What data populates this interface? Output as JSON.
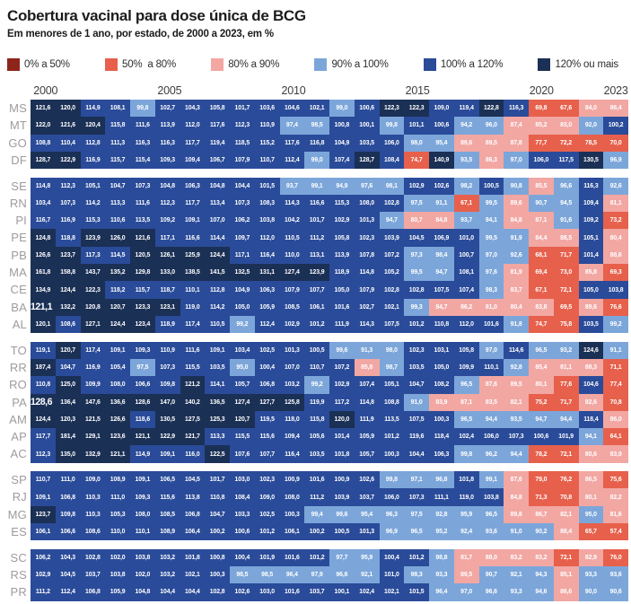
{
  "title": "Cobertura vacinal para dose única de BCG",
  "subtitle": "Em menores de 1 ano, por estado, de 2000 a 2023, em %",
  "legend": [
    {
      "label": "0% a 50%",
      "color": "#8e251b"
    },
    {
      "label": "50%  a 80%",
      "color": "#e7604b"
    },
    {
      "label": "80% a 90%",
      "color": "#f2a7a3"
    },
    {
      "label": "90% a 100%",
      "color": "#7ca6da"
    },
    {
      "label": "100% a 120%",
      "color": "#2a4b99"
    },
    {
      "label": "120% ou mais",
      "color": "#1b3055"
    }
  ],
  "chart_data": {
    "type": "heatmap",
    "unit": "%",
    "years": [
      2000,
      2001,
      2002,
      2003,
      2004,
      2005,
      2006,
      2007,
      2008,
      2009,
      2010,
      2011,
      2012,
      2013,
      2014,
      2015,
      2016,
      2017,
      2018,
      2019,
      2020,
      2021,
      2022,
      2023
    ],
    "x_axis_labels": [
      {
        "label": "2000",
        "col": 0
      },
      {
        "label": "2005",
        "col": 5
      },
      {
        "label": "2010",
        "col": 10
      },
      {
        "label": "2015",
        "col": 15
      },
      {
        "label": "2020",
        "col": 20
      },
      {
        "label": "2023",
        "col": 23
      }
    ],
    "thresholds": [
      50,
      80,
      90,
      100,
      120
    ],
    "highlights": [
      {
        "state": "BA",
        "year": 2000,
        "value": 121.1
      },
      {
        "state": "PA",
        "year": 2000,
        "value": 128.6
      }
    ],
    "groups": [
      {
        "rows": [
          {
            "state": "MS",
            "values": [
              121.6,
              120.0,
              114.9,
              108.1,
              99.8,
              102.7,
              104.3,
              105.8,
              101.7,
              103.6,
              104.6,
              102.1,
              99.0,
              100.6,
              122.3,
              122.3,
              109.0,
              119.4,
              122.8,
              116.3,
              69.8,
              67.6,
              84.0,
              86.4
            ]
          },
          {
            "state": "MT",
            "values": [
              122.0,
              121.6,
              120.4,
              115.8,
              111.6,
              113.9,
              112.0,
              117.6,
              112.3,
              110.9,
              97.4,
              98.5,
              100.8,
              100.1,
              99.8,
              101.1,
              100.6,
              94.2,
              96.0,
              87.4,
              85.2,
              83.0,
              92.0,
              100.2
            ]
          },
          {
            "state": "GO",
            "values": [
              108.8,
              110.4,
              112.8,
              111.3,
              116.3,
              116.3,
              117.7,
              119.4,
              118.5,
              115.2,
              117.6,
              116.8,
              104.9,
              103.5,
              106.0,
              98.0,
              95.4,
              89.6,
              89.5,
              87.8,
              77.7,
              72.2,
              78.5,
              70.0
            ]
          },
          {
            "state": "DF",
            "values": [
              128.7,
              122.9,
              116.9,
              115.7,
              115.4,
              109.3,
              109.4,
              106.7,
              107.9,
              110.7,
              112.4,
              99.0,
              107.4,
              128.7,
              108.4,
              74.7,
              140.9,
              93.5,
              86.3,
              97.0,
              106.0,
              117.5,
              130.5,
              96.9
            ]
          }
        ]
      },
      {
        "rows": [
          {
            "state": "SE",
            "values": [
              114.8,
              112.3,
              105.1,
              104.7,
              107.3,
              104.8,
              106.3,
              104.8,
              104.4,
              101.5,
              93.7,
              99.1,
              94.9,
              97.6,
              98.1,
              102.9,
              102.6,
              98.2,
              100.5,
              90.8,
              85.5,
              96.6,
              116.3,
              92.6
            ]
          },
          {
            "state": "RN",
            "values": [
              103.4,
              107.3,
              114.2,
              113.3,
              111.6,
              112.3,
              117.7,
              113.4,
              107.3,
              108.3,
              114.3,
              116.6,
              115.3,
              108.0,
              102.8,
              97.5,
              91.1,
              67.1,
              99.5,
              89.6,
              90.7,
              94.5,
              109.4,
              81.1
            ]
          },
          {
            "state": "PI",
            "values": [
              116.7,
              116.9,
              115.3,
              110.6,
              113.5,
              109.2,
              109.1,
              107.0,
              106.2,
              103.8,
              104.2,
              101.7,
              102.9,
              101.3,
              94.7,
              80.7,
              84.8,
              93.7,
              94.1,
              84.8,
              87.1,
              91.6,
              109.2,
              73.2
            ]
          },
          {
            "state": "PE",
            "values": [
              124.8,
              118.8,
              123.9,
              126.0,
              121.6,
              117.1,
              116.6,
              114.4,
              109.7,
              112.0,
              110.5,
              111.2,
              105.8,
              102.3,
              103.9,
              104.5,
              106.9,
              101.0,
              99.5,
              91.9,
              84.4,
              88.5,
              105.1,
              80.4
            ]
          },
          {
            "state": "PB",
            "values": [
              126.6,
              123.7,
              117.3,
              114.5,
              120.5,
              126.1,
              125.9,
              124.4,
              117.1,
              116.4,
              110.0,
              113.1,
              113.9,
              107.8,
              107.2,
              97.3,
              98.4,
              100.7,
              97.0,
              92.6,
              68.1,
              71.7,
              101.4,
              88.6
            ]
          },
          {
            "state": "MA",
            "values": [
              161.8,
              158.8,
              143.7,
              135.2,
              129.8,
              133.0,
              138.5,
              141.5,
              132.5,
              131.1,
              127.4,
              123.9,
              118.9,
              114.8,
              105.2,
              99.5,
              94.7,
              108.1,
              97.6,
              81.9,
              69.4,
              73.0,
              85.8,
              69.3
            ]
          },
          {
            "state": "CE",
            "values": [
              134.9,
              124.4,
              122.3,
              118.2,
              115.7,
              118.7,
              110.1,
              112.8,
              104.9,
              106.3,
              107.9,
              107.7,
              105.0,
              107.9,
              102.8,
              102.8,
              107.5,
              107.4,
              98.3,
              83.7,
              67.1,
              72.1,
              105.0,
              103.8
            ]
          },
          {
            "state": "BA",
            "values": [
              121.1,
              132.2,
              120.8,
              120.7,
              123.3,
              123.1,
              119.0,
              114.2,
              105.0,
              105.9,
              108.5,
              106.1,
              101.6,
              102.7,
              102.1,
              99.3,
              84.7,
              86.2,
              81.0,
              80.4,
              83.8,
              69.5,
              89.6,
              76.6
            ]
          },
          {
            "state": "AL",
            "values": [
              120.1,
              108.6,
              127.1,
              124.4,
              123.4,
              118.9,
              117.4,
              110.5,
              99.2,
              112.4,
              102.9,
              101.2,
              111.9,
              114.3,
              107.5,
              101.2,
              110.8,
              112.0,
              101.6,
              91.8,
              74.7,
              75.8,
              103.5,
              99.2
            ]
          }
        ]
      },
      {
        "rows": [
          {
            "state": "TO",
            "values": [
              119.1,
              120.7,
              117.4,
              109.1,
              109.3,
              110.9,
              111.6,
              109.1,
              103.4,
              102.5,
              101.3,
              100.5,
              99.6,
              91.3,
              98.0,
              102.3,
              103.1,
              105.8,
              97.0,
              114.6,
              96.5,
              93.2,
              124.6,
              91.1
            ]
          },
          {
            "state": "RR",
            "values": [
              187.4,
              104.7,
              116.9,
              105.4,
              97.5,
              107.3,
              115.5,
              103.5,
              95.0,
              100.4,
              107.0,
              110.7,
              107.2,
              85.8,
              98.7,
              103.5,
              105.0,
              109.9,
              110.1,
              92.8,
              85.4,
              81.1,
              88.3,
              71.1
            ]
          },
          {
            "state": "RO",
            "values": [
              110.8,
              125.0,
              109.9,
              108.0,
              106.6,
              109.8,
              121.2,
              114.1,
              105.7,
              106.8,
              103.2,
              99.2,
              102.9,
              107.4,
              105.1,
              104.7,
              108.2,
              96.5,
              87.6,
              89.5,
              80.1,
              77.6,
              104.6,
              77.4
            ]
          },
          {
            "state": "PA",
            "values": [
              128.6,
              136.4,
              147.6,
              136.6,
              128.6,
              147.0,
              140.2,
              136.5,
              127.4,
              127.7,
              125.8,
              119.9,
              117.2,
              114.8,
              108.8,
              91.0,
              83.9,
              87.1,
              83.5,
              82.1,
              75.2,
              71.7,
              82.6,
              70.8
            ]
          },
          {
            "state": "AM",
            "values": [
              124.4,
              120.3,
              121.5,
              126.6,
              118.6,
              130.5,
              127.5,
              125.3,
              120.7,
              119.5,
              118.0,
              115.8,
              120.0,
              111.9,
              113.5,
              107.5,
              100.3,
              96.5,
              94.4,
              93.5,
              94.7,
              94.4,
              118.4,
              86.0
            ]
          },
          {
            "state": "AP",
            "values": [
              117.7,
              181.4,
              129.1,
              123.6,
              121.1,
              122.9,
              121.7,
              113.3,
              115.5,
              115.6,
              109.4,
              105.6,
              101.4,
              105.9,
              101.2,
              119.6,
              118.4,
              102.4,
              106.0,
              107.3,
              100.6,
              101.9,
              94.1,
              64.1
            ]
          },
          {
            "state": "AC",
            "values": [
              112.3,
              135.0,
              132.9,
              121.1,
              114.9,
              109.1,
              116.0,
              122.5,
              107.6,
              107.7,
              116.4,
              103.5,
              101.8,
              105.7,
              100.3,
              104.4,
              106.3,
              99.8,
              96.2,
              94.4,
              78.2,
              72.1,
              80.6,
              83.9
            ]
          }
        ]
      },
      {
        "rows": [
          {
            "state": "SP",
            "values": [
              110.7,
              111.0,
              109.0,
              108.9,
              109.1,
              106.5,
              104.5,
              101.7,
              103.0,
              102.3,
              100.9,
              101.6,
              100.9,
              102.6,
              99.8,
              97.1,
              96.8,
              101.8,
              99.1,
              87.6,
              79.0,
              76.2,
              86.5,
              75.6
            ]
          },
          {
            "state": "RJ",
            "values": [
              109.1,
              106.8,
              110.3,
              111.0,
              109.3,
              115.6,
              113.8,
              110.8,
              108.4,
              109.0,
              108.0,
              111.2,
              103.9,
              103.7,
              106.0,
              107.3,
              111.1,
              119.0,
              103.8,
              84.8,
              71.3,
              70.8,
              80.1,
              82.2
            ]
          },
          {
            "state": "MG",
            "values": [
              123.7,
              109.8,
              110.3,
              105.3,
              108.0,
              108.5,
              106.8,
              104.7,
              103.3,
              102.5,
              100.3,
              99.4,
              99.6,
              95.4,
              96.3,
              97.5,
              92.8,
              95.9,
              96.5,
              89.8,
              86.7,
              82.1,
              95.0,
              81.6
            ]
          },
          {
            "state": "ES",
            "values": [
              106.1,
              106.6,
              108.6,
              110.0,
              110.1,
              108.9,
              106.4,
              100.2,
              100.6,
              101.2,
              106.1,
              100.2,
              100.5,
              101.3,
              96.9,
              96.5,
              95.2,
              92.4,
              93.6,
              91.0,
              90.2,
              88.4,
              65.7,
              57.4
            ]
          }
        ]
      },
      {
        "rows": [
          {
            "state": "SC",
            "values": [
              106.2,
              104.3,
              102.8,
              102.0,
              103.8,
              103.2,
              101.8,
              100.8,
              100.4,
              101.9,
              101.6,
              101.2,
              97.7,
              95.9,
              100.4,
              101.2,
              98.8,
              81.7,
              88.0,
              83.2,
              83.2,
              72.1,
              82.9,
              76.0
            ]
          },
          {
            "state": "RS",
            "values": [
              102.9,
              104.5,
              103.7,
              103.8,
              102.0,
              103.2,
              102.1,
              100.3,
              98.5,
              98.5,
              96.4,
              97.9,
              96.6,
              92.1,
              101.0,
              98.3,
              93.3,
              89.5,
              90.7,
              92.1,
              94.3,
              85.1,
              93.3,
              93.6
            ]
          },
          {
            "state": "PR",
            "values": [
              111.2,
              112.4,
              106.8,
              105.9,
              104.8,
              104.4,
              104.4,
              102.8,
              102.6,
              103.0,
              101.6,
              103.7,
              100.1,
              102.4,
              102.1,
              101.5,
              96.4,
              97.0,
              96.6,
              93.3,
              94.6,
              86.6,
              90.0,
              90.6
            ]
          }
        ]
      }
    ]
  }
}
